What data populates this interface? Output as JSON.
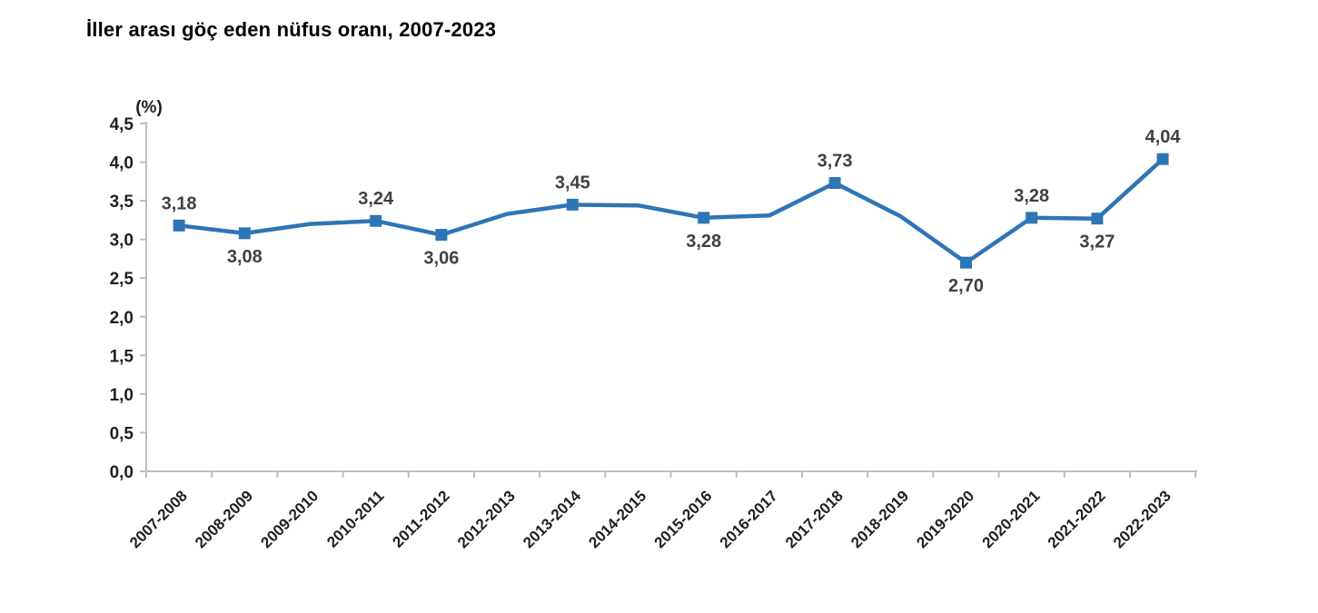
{
  "title": "İller arası göç eden nüfus oranı, 2007-2023",
  "chart_data": {
    "type": "line",
    "title": "İller arası göç eden nüfus oranı, 2007-2023",
    "ylabel": "(%)",
    "xlabel": "",
    "categories": [
      "2007-2008",
      "2008-2009",
      "2009-2010",
      "2010-2011",
      "2011-2012",
      "2012-2013",
      "2013-2014",
      "2014-2015",
      "2015-2016",
      "2016-2017",
      "2017-2018",
      "2018-2019",
      "2019-2020",
      "2020-2021",
      "2021-2022",
      "2022-2023"
    ],
    "series": [
      {
        "name": "İller arası göç eden nüfus oranı (%)",
        "values": [
          3.18,
          3.08,
          3.2,
          3.24,
          3.06,
          3.33,
          3.45,
          3.44,
          3.28,
          3.31,
          3.73,
          3.3,
          2.7,
          3.28,
          3.27,
          4.04
        ],
        "data_labels": [
          "3,18",
          "3,08",
          null,
          "3,24",
          "3,06",
          null,
          "3,45",
          null,
          "3,28",
          null,
          "3,73",
          null,
          "2,70",
          "3,28",
          "3,27",
          "4,04"
        ],
        "label_side": [
          "above",
          "below",
          null,
          "above",
          "below",
          null,
          "above",
          null,
          "below",
          null,
          "above",
          null,
          "below",
          "above",
          "below",
          "above"
        ]
      }
    ],
    "ylim": [
      0,
      4.5
    ],
    "ytick_labels": [
      "0,0",
      "0,5",
      "1,0",
      "1,5",
      "2,0",
      "2,5",
      "3,0",
      "3,5",
      "4,0",
      "4,5"
    ],
    "grid": false,
    "legend": "none",
    "line_color": "#2E75B6",
    "marker": "square",
    "marker_color": "#2E75B6"
  },
  "colors": {
    "axis_line": "#BFBFBF",
    "axis_text": "#1f1f1f",
    "data_label": "#404040",
    "background": "#FFFFFF"
  }
}
